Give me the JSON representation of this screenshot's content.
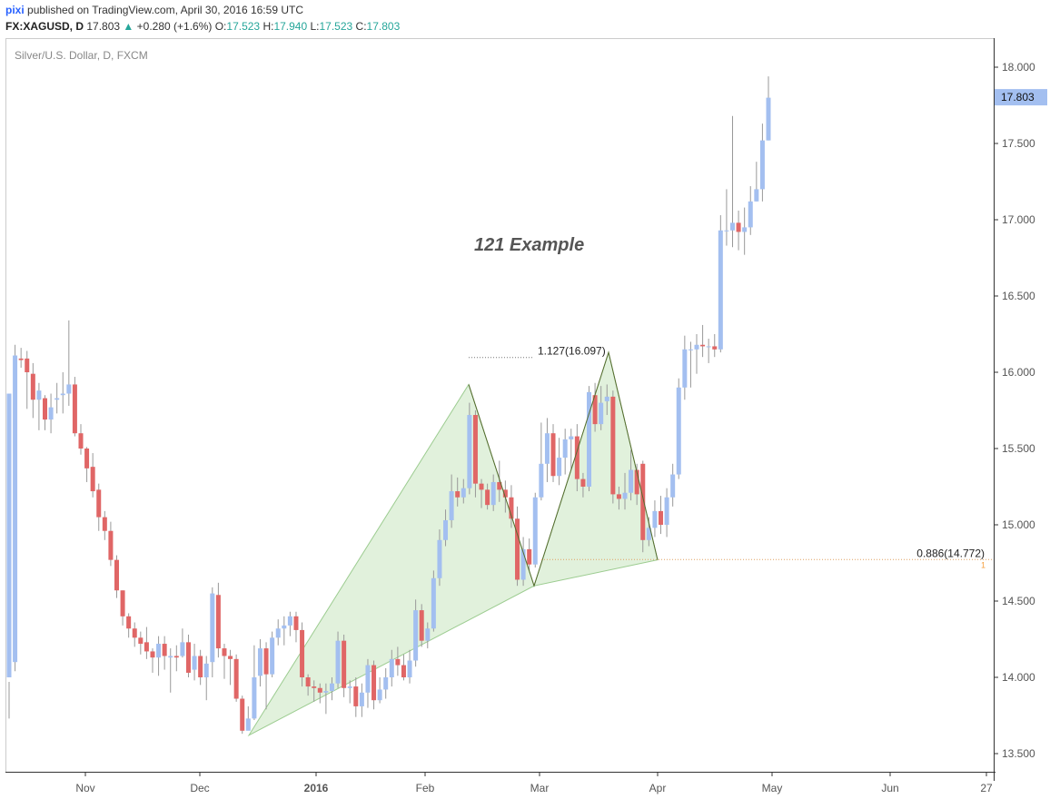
{
  "header": {
    "user": "pixi",
    "published": "published on TradingView.com, April 30, 2016 16:59 UTC",
    "symbol": "FX:XAGUSD, D",
    "last": "17.803",
    "up_icon": "up-triangle-icon",
    "change": "+0.280 (+1.6%)",
    "o_label": "O:",
    "o_value": "17.523",
    "h_label": "H:",
    "h_value": "17.940",
    "l_label": "L:",
    "l_value": "17.523",
    "c_label": "C:",
    "c_value": "17.803"
  },
  "chart_data": {
    "type": "candlestick",
    "title": "Silver/U.S. Dollar, D, FXCM",
    "annotation": "121 Example",
    "price_axis": {
      "ticks": [
        "18.000",
        "17.500",
        "17.000",
        "16.500",
        "16.000",
        "15.500",
        "15.000",
        "14.500",
        "14.000",
        "13.500"
      ],
      "range": [
        13.45,
        18.2
      ],
      "last_price_label": "17.803"
    },
    "time_axis": {
      "ticks": [
        "Nov",
        "Dec",
        "2016",
        "Feb",
        "Mar",
        "Apr",
        "May",
        "Jun",
        "27"
      ],
      "bold": [
        "2016"
      ]
    },
    "fib_labels": [
      {
        "text": "1.127(16.097)",
        "price": 16.097
      },
      {
        "text": "0.886(14.772)",
        "price": 14.772
      }
    ],
    "right_edge_marker": "1",
    "colors": {
      "up": "#a3bff0",
      "down": "#e06666",
      "pattern_fill": "#c8e6c0",
      "pattern_stroke": "#9ccc90",
      "zigzag": "#556b2f",
      "last_price_bg": "#a3bff0",
      "fib_line": "#e0a060"
    },
    "candles": [
      [
        14.0,
        15.86,
        13.97,
        13.73
      ],
      [
        14.1,
        16.11,
        16.18,
        14.04
      ],
      [
        16.09,
        16.08,
        16.16,
        16.03
      ],
      [
        16.09,
        16.0,
        16.14,
        15.76
      ],
      [
        15.99,
        15.82,
        16.06,
        15.7
      ],
      [
        15.82,
        15.88,
        15.93,
        15.62
      ],
      [
        15.83,
        15.69,
        15.85,
        15.62
      ],
      [
        15.69,
        15.77,
        15.86,
        15.6
      ],
      [
        15.82,
        15.83,
        15.93,
        15.73
      ],
      [
        15.85,
        15.86,
        16.0,
        15.73
      ],
      [
        15.86,
        15.92,
        16.34,
        15.78
      ],
      [
        15.92,
        15.6,
        15.97,
        15.58
      ],
      [
        15.6,
        15.5,
        15.66,
        15.46
      ],
      [
        15.5,
        15.37,
        15.51,
        15.28
      ],
      [
        15.38,
        15.22,
        15.47,
        15.18
      ],
      [
        15.23,
        15.05,
        15.27,
        14.96
      ],
      [
        15.05,
        14.96,
        15.09,
        14.9
      ],
      [
        14.96,
        14.77,
        15.02,
        14.73
      ],
      [
        14.77,
        14.57,
        14.8,
        14.52
      ],
      [
        14.57,
        14.4,
        14.57,
        14.34
      ],
      [
        14.4,
        14.32,
        14.42,
        14.26
      ],
      [
        14.32,
        14.26,
        14.36,
        14.2
      ],
      [
        14.26,
        14.22,
        14.3,
        14.15
      ],
      [
        14.23,
        14.17,
        14.33,
        14.12
      ],
      [
        14.17,
        14.13,
        14.19,
        14.03
      ],
      [
        14.13,
        14.22,
        14.27,
        14.01
      ],
      [
        14.22,
        14.14,
        14.27,
        14.05
      ],
      [
        14.13,
        14.14,
        14.19,
        13.9
      ],
      [
        14.14,
        14.13,
        14.21,
        14.04
      ],
      [
        14.14,
        14.23,
        14.32,
        14.13
      ],
      [
        14.23,
        14.03,
        14.28,
        14.0
      ],
      [
        14.05,
        14.14,
        14.22,
        13.98
      ],
      [
        14.14,
        14.0,
        14.18,
        13.95
      ],
      [
        14.0,
        14.09,
        14.14,
        13.85
      ],
      [
        14.1,
        14.55,
        14.59,
        14.0
      ],
      [
        14.54,
        14.19,
        14.62,
        14.13
      ],
      [
        14.19,
        14.14,
        14.22,
        13.99
      ],
      [
        14.14,
        14.12,
        14.18,
        13.95
      ],
      [
        14.12,
        13.86,
        14.15,
        13.84
      ],
      [
        13.86,
        13.65,
        13.88,
        13.63
      ],
      [
        13.65,
        13.73,
        13.81,
        13.68
      ],
      [
        13.73,
        14.0,
        14.21,
        13.72
      ],
      [
        14.01,
        14.19,
        14.25,
        13.94
      ],
      [
        14.19,
        14.02,
        14.23,
        13.79
      ],
      [
        14.02,
        14.26,
        14.3,
        14.0
      ],
      [
        14.26,
        14.32,
        14.38,
        14.21
      ],
      [
        14.32,
        14.34,
        14.4,
        14.21
      ],
      [
        14.34,
        14.4,
        14.43,
        14.27
      ],
      [
        14.4,
        14.31,
        14.43,
        14.23
      ],
      [
        14.31,
        14.0,
        14.36,
        13.94
      ],
      [
        14.0,
        13.94,
        14.02,
        13.88
      ],
      [
        13.94,
        13.93,
        13.98,
        13.84
      ],
      [
        13.93,
        13.9,
        13.96,
        13.83
      ],
      [
        13.9,
        13.91,
        13.96,
        13.76
      ],
      [
        13.91,
        13.96,
        14.0,
        13.85
      ],
      [
        13.96,
        14.24,
        14.3,
        13.93
      ],
      [
        14.24,
        13.93,
        14.28,
        13.87
      ],
      [
        13.93,
        13.94,
        13.98,
        13.83
      ],
      [
        13.94,
        13.81,
        14.0,
        13.74
      ],
      [
        13.81,
        13.9,
        13.96,
        13.74
      ],
      [
        13.9,
        14.08,
        14.12,
        13.8
      ],
      [
        14.08,
        13.85,
        14.11,
        13.79
      ],
      [
        13.85,
        13.92,
        14.0,
        13.83
      ],
      [
        13.92,
        14.0,
        14.06,
        13.86
      ],
      [
        14.0,
        14.12,
        14.18,
        13.94
      ],
      [
        14.12,
        14.08,
        14.2,
        14.01
      ],
      [
        14.08,
        14.0,
        14.15,
        13.98
      ],
      [
        14.0,
        14.11,
        14.18,
        13.96
      ],
      [
        14.11,
        14.44,
        14.51,
        14.07
      ],
      [
        14.44,
        14.24,
        14.48,
        14.2
      ],
      [
        14.24,
        14.32,
        14.36,
        14.19
      ],
      [
        14.32,
        14.65,
        14.7,
        14.3
      ],
      [
        14.65,
        14.9,
        14.97,
        14.6
      ],
      [
        14.9,
        15.03,
        15.1,
        14.86
      ],
      [
        15.03,
        15.22,
        15.33,
        14.98
      ],
      [
        15.22,
        15.18,
        15.31,
        15.12
      ],
      [
        15.18,
        15.24,
        15.3,
        15.14
      ],
      [
        15.24,
        15.72,
        15.8,
        15.2
      ],
      [
        15.72,
        15.27,
        15.75,
        15.18
      ],
      [
        15.27,
        15.23,
        15.3,
        15.11
      ],
      [
        15.23,
        15.13,
        15.27,
        15.1
      ],
      [
        15.13,
        15.28,
        15.33,
        15.09
      ],
      [
        15.28,
        15.23,
        15.42,
        15.15
      ],
      [
        15.23,
        15.18,
        15.29,
        15.08
      ],
      [
        15.18,
        15.04,
        15.26,
        14.98
      ],
      [
        15.04,
        14.64,
        15.12,
        14.6
      ],
      [
        14.64,
        14.84,
        14.92,
        14.6
      ],
      [
        14.84,
        14.74,
        14.91,
        14.7
      ],
      [
        14.74,
        15.18,
        15.21,
        14.72
      ],
      [
        15.18,
        15.4,
        15.67,
        15.16
      ],
      [
        15.4,
        15.6,
        15.7,
        15.28
      ],
      [
        15.6,
        15.32,
        15.66,
        15.28
      ],
      [
        15.32,
        15.44,
        15.57,
        15.26
      ],
      [
        15.44,
        15.56,
        15.63,
        15.33
      ],
      [
        15.56,
        15.58,
        15.63,
        15.36
      ],
      [
        15.58,
        15.3,
        15.66,
        15.22
      ],
      [
        15.3,
        15.25,
        15.34,
        15.18
      ],
      [
        15.25,
        15.87,
        15.91,
        15.22
      ],
      [
        15.85,
        15.66,
        15.93,
        15.61
      ],
      [
        15.66,
        15.8,
        15.91,
        15.62
      ],
      [
        15.81,
        15.84,
        15.92,
        15.72
      ],
      [
        15.84,
        15.2,
        15.88,
        15.14
      ],
      [
        15.2,
        15.17,
        15.25,
        15.1
      ],
      [
        15.17,
        15.21,
        15.34,
        15.1
      ],
      [
        15.21,
        15.36,
        15.49,
        15.16
      ],
      [
        15.36,
        15.2,
        15.4,
        15.13
      ],
      [
        15.4,
        14.9,
        15.42,
        14.82
      ],
      [
        14.9,
        14.98,
        15.05,
        14.86
      ],
      [
        14.98,
        15.09,
        15.16,
        14.92
      ],
      [
        15.09,
        15.0,
        15.19,
        14.94
      ],
      [
        15.0,
        15.18,
        15.24,
        14.92
      ],
      [
        15.18,
        15.33,
        15.4,
        15.12
      ],
      [
        15.33,
        15.9,
        15.96,
        15.3
      ],
      [
        15.9,
        16.15,
        16.24,
        15.82
      ],
      [
        16.15,
        16.15,
        16.2,
        15.9
      ],
      [
        16.15,
        16.18,
        16.25,
        15.99
      ],
      [
        16.18,
        16.17,
        16.31,
        16.1
      ],
      [
        16.17,
        16.17,
        16.22,
        16.06
      ],
      [
        16.17,
        16.15,
        16.25,
        16.1
      ],
      [
        16.15,
        16.93,
        17.03,
        16.13
      ],
      [
        16.93,
        16.93,
        17.2,
        16.83
      ],
      [
        16.93,
        16.98,
        17.68,
        16.82
      ],
      [
        16.98,
        16.92,
        17.06,
        16.8
      ],
      [
        16.92,
        16.95,
        17.08,
        16.77
      ],
      [
        16.95,
        17.12,
        17.22,
        16.9
      ],
      [
        17.12,
        17.2,
        17.38,
        17.12
      ],
      [
        17.2,
        17.52,
        17.63,
        17.12
      ],
      [
        17.52,
        17.8,
        17.94,
        17.52
      ]
    ]
  }
}
